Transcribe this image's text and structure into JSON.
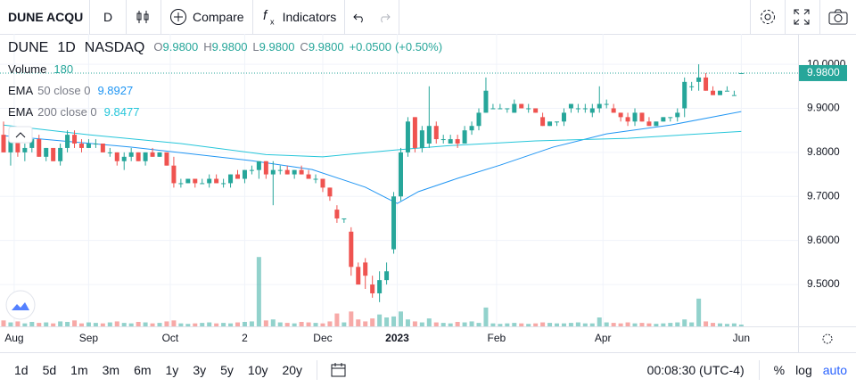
{
  "toolbar": {
    "symbol": "DUNE ACQU",
    "interval": "D",
    "compare": "Compare",
    "indicators": "Indicators"
  },
  "chart_data": {
    "type": "candlestick",
    "symbol": "DUNE",
    "interval": "1D",
    "exchange": "NASDAQ",
    "ohlc": [
      {
        "key": "O",
        "value": 9.98,
        "label": "9.9800"
      },
      {
        "key": "H",
        "value": 9.98,
        "label": "9.9800"
      },
      {
        "key": "L",
        "value": 9.98,
        "label": "9.9800"
      },
      {
        "key": "C",
        "value": 9.98,
        "label": "9.9800"
      }
    ],
    "change": {
      "value": 0.05,
      "label": "+0.0500"
    },
    "change_pct": {
      "value": 0.5,
      "label": "(+0.50%)"
    },
    "last_price": {
      "value": 9.98,
      "label": "9.9800"
    },
    "colors": {
      "up": "#26a69a",
      "down": "#ef5350"
    },
    "grid": true,
    "xlim": [
      -0.5,
      112
    ],
    "ylim": [
      9.405,
      10.069
    ],
    "yticks": [
      {
        "value": 10,
        "label": "10.0000"
      },
      {
        "value": 9.9,
        "label": "9.9000"
      },
      {
        "value": 9.8,
        "label": "9.8000"
      },
      {
        "value": 9.7,
        "label": "9.7000"
      },
      {
        "value": 9.6,
        "label": "9.6000"
      },
      {
        "value": 9.5,
        "label": "9.5000"
      }
    ],
    "xticks": [
      {
        "value": 1.5,
        "label": "Aug"
      },
      {
        "value": 12,
        "label": "Sep"
      },
      {
        "value": 23.5,
        "label": "Oct"
      },
      {
        "value": 34,
        "label": "2"
      },
      {
        "value": 45,
        "label": "Dec"
      },
      {
        "value": 55.5,
        "label": "2023"
      },
      {
        "value": 69.5,
        "label": "Feb"
      },
      {
        "value": 84.5,
        "label": "Apr"
      },
      {
        "value": 104,
        "label": "Jun"
      }
    ],
    "candles": [
      [
        9.84,
        9.87,
        9.8,
        9.8
      ],
      [
        9.8,
        9.84,
        9.77,
        9.83
      ],
      [
        9.83,
        9.85,
        9.79,
        9.8
      ],
      [
        9.8,
        9.82,
        9.78,
        9.81
      ],
      [
        9.81,
        9.84,
        9.8,
        9.83
      ],
      [
        9.83,
        9.84,
        9.79,
        9.79
      ],
      [
        9.79,
        9.81,
        9.78,
        9.81
      ],
      [
        9.81,
        9.81,
        9.78,
        9.78
      ],
      [
        9.78,
        9.82,
        9.77,
        9.81
      ],
      [
        9.81,
        9.85,
        9.8,
        9.84
      ],
      [
        9.84,
        9.85,
        9.81,
        9.82
      ],
      [
        9.82,
        9.83,
        9.8,
        9.81
      ],
      [
        9.81,
        9.83,
        9.81,
        9.82
      ],
      [
        9.82,
        9.83,
        9.81,
        9.82
      ],
      [
        9.82,
        9.82,
        9.8,
        9.8
      ],
      [
        9.8,
        9.81,
        9.79,
        9.8
      ],
      [
        9.8,
        9.8,
        9.77,
        9.78
      ],
      [
        9.78,
        9.8,
        9.76,
        9.79
      ],
      [
        9.79,
        9.81,
        9.78,
        9.8
      ],
      [
        9.8,
        9.8,
        9.78,
        9.78
      ],
      [
        9.78,
        9.8,
        9.77,
        9.8
      ],
      [
        9.8,
        9.81,
        9.79,
        9.79
      ],
      [
        9.79,
        9.8,
        9.79,
        9.8
      ],
      [
        9.8,
        9.8,
        9.77,
        9.77
      ],
      [
        9.77,
        9.79,
        9.72,
        9.73
      ],
      [
        9.73,
        9.74,
        9.72,
        9.73
      ],
      [
        9.73,
        9.74,
        9.73,
        9.74
      ],
      [
        9.74,
        9.74,
        9.72,
        9.73
      ],
      [
        9.73,
        9.74,
        9.73,
        9.73
      ],
      [
        9.73,
        9.75,
        9.72,
        9.74
      ],
      [
        9.74,
        9.75,
        9.73,
        9.73
      ],
      [
        9.73,
        9.74,
        9.72,
        9.73
      ],
      [
        9.73,
        9.75,
        9.72,
        9.75
      ],
      [
        9.75,
        9.76,
        9.74,
        9.74
      ],
      [
        9.74,
        9.76,
        9.73,
        9.76
      ],
      [
        9.76,
        9.77,
        9.75,
        9.76
      ],
      [
        9.76,
        9.78,
        9.74,
        9.78
      ],
      [
        9.78,
        9.78,
        9.74,
        9.75
      ],
      [
        9.75,
        9.78,
        9.68,
        9.76
      ],
      [
        9.76,
        9.77,
        9.75,
        9.76
      ],
      [
        9.76,
        9.77,
        9.75,
        9.75
      ],
      [
        9.75,
        9.76,
        9.74,
        9.76
      ],
      [
        9.76,
        9.77,
        9.75,
        9.75
      ],
      [
        9.75,
        9.76,
        9.74,
        9.74
      ],
      [
        9.74,
        9.75,
        9.73,
        9.74
      ],
      [
        9.74,
        9.74,
        9.71,
        9.72
      ],
      [
        9.72,
        9.72,
        9.69,
        9.7
      ],
      [
        9.67,
        9.68,
        9.64,
        9.65
      ],
      [
        9.65,
        9.65,
        9.64,
        9.65
      ],
      [
        9.62,
        9.63,
        9.52,
        9.54
      ],
      [
        9.54,
        9.55,
        9.5,
        9.5
      ],
      [
        9.55,
        9.56,
        9.49,
        9.52
      ],
      [
        9.5,
        9.52,
        9.47,
        9.48
      ],
      [
        9.48,
        9.53,
        9.46,
        9.51
      ],
      [
        9.51,
        9.55,
        9.5,
        9.53
      ],
      [
        9.58,
        9.71,
        9.57,
        9.7
      ],
      [
        9.7,
        9.81,
        9.69,
        9.8
      ],
      [
        9.8,
        9.88,
        9.79,
        9.87
      ],
      [
        9.88,
        9.88,
        9.8,
        9.81
      ],
      [
        9.81,
        9.86,
        9.8,
        9.85
      ],
      [
        9.82,
        9.95,
        9.81,
        9.86
      ],
      [
        9.86,
        9.87,
        9.82,
        9.83
      ],
      [
        9.83,
        9.84,
        9.82,
        9.83
      ],
      [
        9.82,
        9.84,
        9.82,
        9.83
      ],
      [
        9.83,
        9.84,
        9.81,
        9.82
      ],
      [
        9.82,
        9.86,
        9.82,
        9.85
      ],
      [
        9.85,
        9.87,
        9.84,
        9.86
      ],
      [
        9.86,
        9.9,
        9.85,
        9.89
      ],
      [
        9.89,
        9.97,
        9.89,
        9.94
      ],
      [
        9.9,
        9.91,
        9.9,
        9.9
      ],
      [
        9.9,
        9.91,
        9.9,
        9.9
      ],
      [
        9.9,
        9.9,
        9.89,
        9.9
      ],
      [
        9.89,
        9.92,
        9.89,
        9.91
      ],
      [
        9.91,
        9.91,
        9.9,
        9.9
      ],
      [
        9.9,
        9.91,
        9.89,
        9.9
      ],
      [
        9.9,
        9.9,
        9.89,
        9.89
      ],
      [
        9.88,
        9.89,
        9.86,
        9.86
      ],
      [
        9.86,
        9.87,
        9.86,
        9.87
      ],
      [
        9.87,
        9.87,
        9.86,
        9.87
      ],
      [
        9.87,
        9.9,
        9.86,
        9.89
      ],
      [
        9.9,
        9.91,
        9.89,
        9.91
      ],
      [
        9.9,
        9.91,
        9.89,
        9.9
      ],
      [
        9.9,
        9.91,
        9.89,
        9.9
      ],
      [
        9.89,
        9.91,
        9.88,
        9.9
      ],
      [
        9.9,
        9.95,
        9.89,
        9.91
      ],
      [
        9.91,
        9.92,
        9.9,
        9.91
      ],
      [
        9.9,
        9.91,
        9.89,
        9.89
      ],
      [
        9.89,
        9.89,
        9.87,
        9.88
      ],
      [
        9.88,
        9.89,
        9.86,
        9.87
      ],
      [
        9.87,
        9.9,
        9.86,
        9.89
      ],
      [
        9.89,
        9.89,
        9.87,
        9.87
      ],
      [
        9.87,
        9.88,
        9.86,
        9.86
      ],
      [
        9.86,
        9.87,
        9.86,
        9.87
      ],
      [
        9.87,
        9.88,
        9.87,
        9.88
      ],
      [
        9.88,
        9.88,
        9.87,
        9.88
      ],
      [
        9.88,
        9.9,
        9.87,
        9.89
      ],
      [
        9.9,
        9.97,
        9.88,
        9.96
      ],
      [
        9.95,
        9.96,
        9.94,
        9.95
      ],
      [
        9.96,
        10.0,
        9.94,
        9.97
      ],
      [
        9.97,
        9.98,
        9.94,
        9.94
      ],
      [
        9.94,
        9.95,
        9.93,
        9.93
      ],
      [
        9.93,
        9.94,
        9.93,
        9.94
      ],
      [
        9.94,
        9.95,
        9.94,
        9.94
      ],
      [
        9.93,
        9.94,
        9.93,
        9.93
      ],
      [
        9.98,
        9.98,
        9.98,
        9.98
      ]
    ],
    "volume_ylim": [
      0,
      9000
    ],
    "volume": {
      "name": "Volume",
      "values": [
        600,
        400,
        500,
        300,
        450,
        350,
        400,
        300,
        500,
        450,
        600,
        300,
        400,
        350,
        300,
        400,
        500,
        350,
        300,
        450,
        400,
        300,
        350,
        500,
        600,
        300,
        250,
        300,
        350,
        400,
        300,
        350,
        300,
        400,
        450,
        500,
        7000,
        600,
        700,
        400,
        350,
        300,
        450,
        400,
        350,
        300,
        500,
        1300,
        400,
        1500,
        700,
        500,
        800,
        1200,
        900,
        1000,
        1500,
        700,
        500,
        400,
        800,
        400,
        350,
        300,
        450,
        400,
        500,
        350,
        1900,
        300,
        250,
        300,
        350,
        300,
        250,
        300,
        400,
        350,
        300,
        300,
        350,
        400,
        300,
        300,
        900,
        400,
        350,
        300,
        400,
        300,
        350,
        300,
        250,
        300,
        350,
        400,
        700,
        400,
        2800,
        500,
        350,
        300,
        250,
        300,
        180
      ]
    },
    "indicators": [
      {
        "name": "EMA",
        "params": "50 close 0",
        "color": "#2196f3",
        "x": [
          0,
          18,
          35,
          43.5,
          51,
          55.5,
          58.5,
          64,
          70,
          77.5,
          85,
          94,
          104
        ],
        "values": [
          9.838,
          9.812,
          9.781,
          9.761,
          9.721,
          9.684,
          9.711,
          9.741,
          9.771,
          9.812,
          9.842,
          9.862,
          9.8927
        ]
      },
      {
        "name": "EMA",
        "params": "200 close 0",
        "color": "#26c6da",
        "x": [
          0,
          12,
          25,
          37,
          45,
          55,
          62.5,
          75,
          88,
          104
        ],
        "values": [
          9.862,
          9.84,
          9.82,
          9.795,
          9.79,
          9.805,
          9.815,
          9.826,
          9.832,
          9.8477
        ]
      }
    ]
  },
  "bottom_bar": {
    "ranges": [
      "1d",
      "5d",
      "1m",
      "3m",
      "6m",
      "1y",
      "3y",
      "5y",
      "10y",
      "20y"
    ],
    "time": "00:08:30 (UTC-4)",
    "percent": "%",
    "log": "log",
    "auto": "auto"
  }
}
